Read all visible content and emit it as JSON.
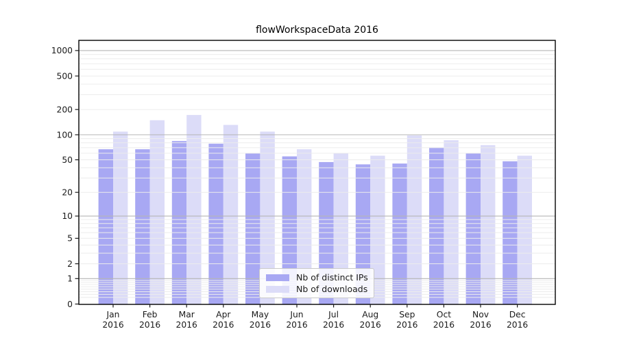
{
  "chart_data": {
    "type": "bar",
    "title": "flowWorkspaceData 2016",
    "xlabel": "",
    "ylabel": "",
    "year_label": "2016",
    "categories": [
      "Jan",
      "Feb",
      "Mar",
      "Apr",
      "May",
      "Jun",
      "Jul",
      "Aug",
      "Sep",
      "Oct",
      "Nov",
      "Dec"
    ],
    "series": [
      {
        "name": "Nb of distinct IPs",
        "color": "#a8a8f3",
        "values": [
          67,
          67,
          84,
          78,
          60,
          55,
          47,
          44,
          45,
          70,
          60,
          48
        ]
      },
      {
        "name": "Nb of downloads",
        "color": "#dcdcf8",
        "values": [
          109,
          149,
          172,
          131,
          109,
          67,
          60,
          56,
          98,
          86,
          75,
          56
        ]
      }
    ],
    "yscale": "log1p",
    "yticks": [
      0,
      1,
      2,
      5,
      10,
      20,
      50,
      100,
      200,
      500,
      1000
    ],
    "ylim": [
      0,
      1300
    ],
    "grid": true,
    "grid_major_color": "#b5b5b5",
    "grid_minor_color": "#ececec",
    "axis_color": "#000000",
    "tick_label_color": "#1a1a1a",
    "legend_position": "lower center"
  }
}
